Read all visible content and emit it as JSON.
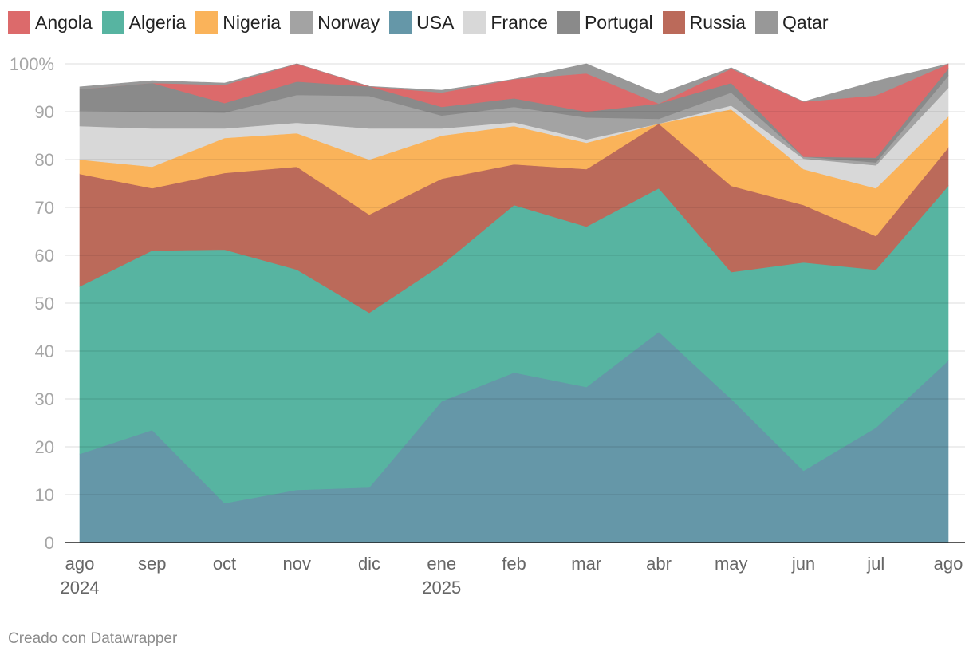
{
  "legend": {
    "items": [
      {
        "label": "Angola",
        "color": "#dc6a6b"
      },
      {
        "label": "Algeria",
        "color": "#57b4a1"
      },
      {
        "label": "Nigeria",
        "color": "#fab35a"
      },
      {
        "label": "Norway",
        "color": "#a3a3a3"
      },
      {
        "label": "USA",
        "color": "#6597a8"
      },
      {
        "label": "France",
        "color": "#d8d8d8"
      },
      {
        "label": "Portugal",
        "color": "#8a8a8a"
      },
      {
        "label": "Russia",
        "color": "#bb6a5a"
      },
      {
        "label": "Qatar",
        "color": "#989898"
      }
    ]
  },
  "chart_data": {
    "type": "area",
    "stacked": true,
    "x_tick_labels": [
      {
        "month": "ago",
        "year": "2024"
      },
      {
        "month": "sep",
        "year": ""
      },
      {
        "month": "oct",
        "year": ""
      },
      {
        "month": "nov",
        "year": ""
      },
      {
        "month": "dic",
        "year": ""
      },
      {
        "month": "ene",
        "year": "2025"
      },
      {
        "month": "feb",
        "year": ""
      },
      {
        "month": "mar",
        "year": ""
      },
      {
        "month": "abr",
        "year": ""
      },
      {
        "month": "may",
        "year": ""
      },
      {
        "month": "jun",
        "year": ""
      },
      {
        "month": "jul",
        "year": ""
      },
      {
        "month": "ago",
        "year": ""
      }
    ],
    "y_ticks": [
      {
        "value": 0,
        "label": "0"
      },
      {
        "value": 10,
        "label": "10"
      },
      {
        "value": 20,
        "label": "20"
      },
      {
        "value": 30,
        "label": "30"
      },
      {
        "value": 40,
        "label": "40"
      },
      {
        "value": 50,
        "label": "50"
      },
      {
        "value": 60,
        "label": "60"
      },
      {
        "value": 70,
        "label": "70"
      },
      {
        "value": 80,
        "label": "80"
      },
      {
        "value": 90,
        "label": "90"
      },
      {
        "value": 100,
        "label": "100%"
      }
    ],
    "ylim": [
      0,
      100
    ],
    "grid": true,
    "legend_position": "top",
    "series": [
      {
        "name": "USA",
        "color": "#6597a8",
        "values": [
          18.5,
          23.5,
          8.2,
          11.0,
          11.5,
          29.5,
          35.5,
          32.5,
          44.0,
          30.0,
          15.0,
          24.0,
          38.0
        ]
      },
      {
        "name": "Algeria",
        "color": "#57b4a1",
        "values": [
          35.0,
          37.5,
          53.0,
          46.0,
          36.5,
          28.5,
          35.0,
          33.5,
          30.0,
          26.5,
          43.5,
          33.0,
          36.5
        ]
      },
      {
        "name": "Russia",
        "color": "#bb6a5a",
        "values": [
          23.5,
          13.0,
          16.0,
          21.5,
          20.5,
          18.0,
          8.5,
          12.0,
          13.5,
          18.0,
          12.0,
          7.0,
          8.0
        ]
      },
      {
        "name": "Nigeria",
        "color": "#fab35a",
        "values": [
          3.0,
          4.5,
          7.3,
          7.0,
          11.5,
          9.0,
          8.0,
          5.5,
          0.0,
          16.0,
          7.5,
          10.0,
          6.5
        ]
      },
      {
        "name": "France",
        "color": "#d8d8d8",
        "values": [
          7.0,
          8.0,
          2.0,
          2.2,
          6.5,
          1.5,
          0.8,
          0.7,
          0.0,
          0.8,
          2.2,
          4.8,
          6.0
        ]
      },
      {
        "name": "Norway",
        "color": "#a3a3a3",
        "values": [
          3.2,
          3.5,
          3.3,
          5.8,
          6.8,
          2.7,
          3.2,
          4.6,
          1.0,
          2.7,
          0.4,
          0.6,
          2.5
        ]
      },
      {
        "name": "Portugal",
        "color": "#8a8a8a",
        "values": [
          4.5,
          6.0,
          2.0,
          2.8,
          2.0,
          1.8,
          1.8,
          1.2,
          3.2,
          2.0,
          0.0,
          1.0,
          1.5
        ]
      },
      {
        "name": "Angola",
        "color": "#dc6a6b",
        "values": [
          0.0,
          0.0,
          3.8,
          3.7,
          0.0,
          3.0,
          4.0,
          8.0,
          0.0,
          3.0,
          11.5,
          13.0,
          1.0
        ]
      },
      {
        "name": "Qatar",
        "color": "#989898",
        "values": [
          0.5,
          0.5,
          0.4,
          0.0,
          0.0,
          0.5,
          0.0,
          2.0,
          2.0,
          0.2,
          0.0,
          3.0,
          0.0
        ]
      }
    ]
  },
  "footer": {
    "credit": "Creado con Datawrapper"
  }
}
